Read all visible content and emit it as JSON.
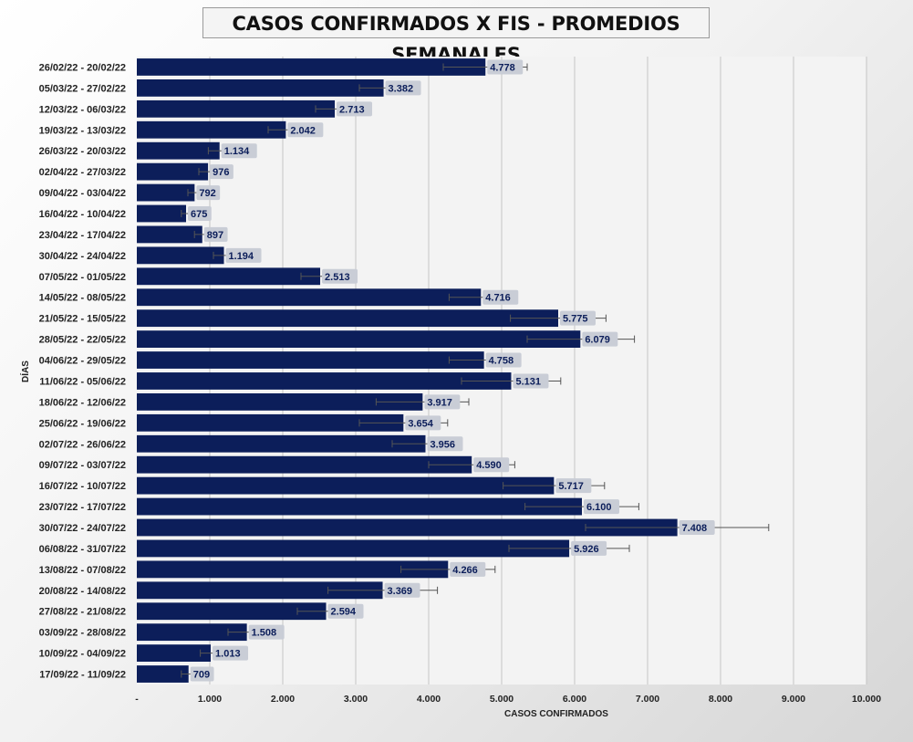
{
  "chart_data": {
    "type": "bar",
    "orientation": "horizontal",
    "title": "CASOS CONFIRMADOS X FIS - PROMEDIOS SEMANALES",
    "xlabel": "CASOS CONFIRMADOS",
    "ylabel": "DÍAS",
    "xlim": [
      0,
      10000
    ],
    "x_ticks": [
      {
        "value": 0,
        "label": "-"
      },
      {
        "value": 1000,
        "label": "1.000"
      },
      {
        "value": 2000,
        "label": "2.000"
      },
      {
        "value": 3000,
        "label": "3.000"
      },
      {
        "value": 4000,
        "label": "4.000"
      },
      {
        "value": 5000,
        "label": "5.000"
      },
      {
        "value": 6000,
        "label": "6.000"
      },
      {
        "value": 7000,
        "label": "7.000"
      },
      {
        "value": 8000,
        "label": "8.000"
      },
      {
        "value": 9000,
        "label": "9.000"
      },
      {
        "value": 10000,
        "label": "10.000"
      }
    ],
    "grid": true,
    "bar_color": "#0c1e5a",
    "categories": [
      "26/02/22 - 20/02/22",
      "05/03/22 - 27/02/22",
      "12/03/22 - 06/03/22",
      "19/03/22 - 13/03/22",
      "26/03/22 - 20/03/22",
      "02/04/22 - 27/03/22",
      "09/04/22 - 03/04/22",
      "16/04/22 - 10/04/22",
      "23/04/22 - 17/04/22",
      "30/04/22 - 24/04/22",
      "07/05/22 - 01/05/22",
      "14/05/22 - 08/05/22",
      "21/05/22 - 15/05/22",
      "28/05/22 - 22/05/22",
      "04/06/22 - 29/05/22",
      "11/06/22 - 05/06/22",
      "18/06/22 - 12/06/22",
      "25/06/22 - 19/06/22",
      "02/07/22 - 26/06/22",
      "09/07/22 - 03/07/22",
      "16/07/22 - 10/07/22",
      "23/07/22 - 17/07/22",
      "30/07/22 - 24/07/22",
      "06/08/22 - 31/07/22",
      "13/08/22 - 07/08/22",
      "20/08/22 - 14/08/22",
      "27/08/22 - 21/08/22",
      "03/09/22 - 28/08/22",
      "10/09/22 - 04/09/22",
      "17/09/22 - 11/09/22"
    ],
    "values": [
      4778,
      3382,
      2713,
      2042,
      1134,
      976,
      792,
      675,
      897,
      1194,
      2513,
      4716,
      5775,
      6079,
      4758,
      5131,
      3917,
      3654,
      3956,
      4590,
      5717,
      6100,
      7408,
      5926,
      4266,
      3369,
      2594,
      1508,
      1013,
      709
    ],
    "data_labels": [
      "4.778",
      "3.382",
      "2.713",
      "2.042",
      "1.134",
      "976",
      "792",
      "675",
      "897",
      "1.194",
      "2.513",
      "4.716",
      "5.775",
      "6.079",
      "4.758",
      "5.131",
      "3.917",
      "3.654",
      "3.956",
      "4.590",
      "5.717",
      "6.100",
      "7.408",
      "5.926",
      "4.266",
      "3.369",
      "2.594",
      "1.508",
      "1.013",
      "709"
    ],
    "error_low": [
      4200,
      3050,
      2450,
      1800,
      980,
      850,
      700,
      610,
      790,
      1050,
      2250,
      4280,
      5120,
      5350,
      4280,
      4450,
      3280,
      3050,
      3500,
      4000,
      5020,
      5320,
      6150,
      5100,
      3620,
      2620,
      2200,
      1250,
      870,
      610
    ],
    "error_high": [
      5350,
      3720,
      2980,
      2280,
      1290,
      1100,
      880,
      740,
      1000,
      1340,
      2780,
      5150,
      6430,
      6820,
      5230,
      5810,
      4550,
      4260,
      4420,
      5180,
      6410,
      6880,
      8660,
      6750,
      4910,
      4120,
      2990,
      1770,
      1160,
      810
    ]
  }
}
